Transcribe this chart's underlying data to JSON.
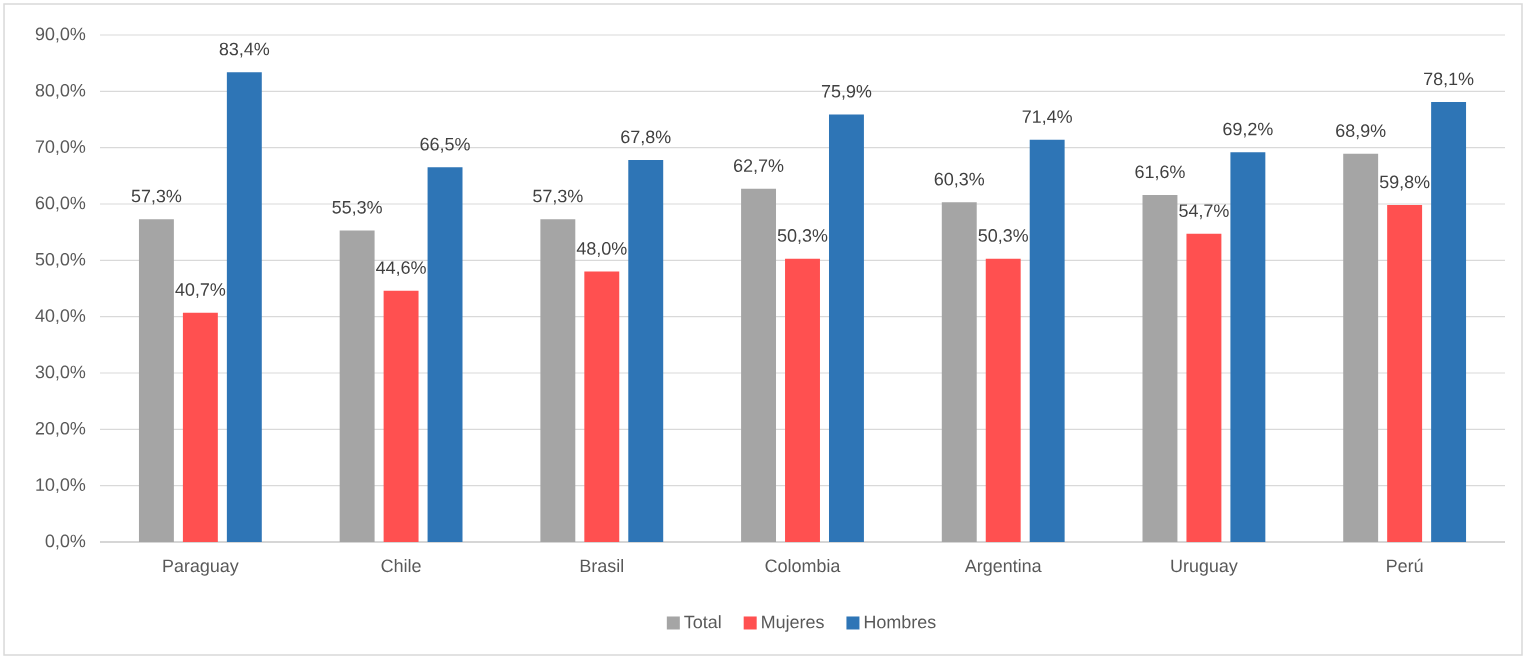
{
  "chart_data": {
    "type": "bar",
    "categories": [
      "Paraguay",
      "Chile",
      "Brasil",
      "Colombia",
      "Argentina",
      "Uruguay",
      "Perú"
    ],
    "series": [
      {
        "name": "Total",
        "color": "#a5a5a5",
        "values": [
          57.3,
          55.3,
          57.3,
          62.7,
          60.3,
          61.6,
          68.9
        ],
        "value_labels": [
          "57,3%",
          "55,3%",
          "57,3%",
          "62,7%",
          "60,3%",
          "61,6%",
          "68,9%"
        ]
      },
      {
        "name": "Mujeres",
        "color": "#ff5050",
        "values": [
          40.7,
          44.6,
          48.0,
          50.3,
          50.3,
          54.7,
          59.8
        ],
        "value_labels": [
          "40,7%",
          "44,6%",
          "48,0%",
          "50,3%",
          "50,3%",
          "54,7%",
          "59,8%"
        ]
      },
      {
        "name": "Hombres",
        "color": "#2e75b6",
        "values": [
          83.4,
          66.5,
          67.8,
          75.9,
          71.4,
          69.2,
          78.1
        ],
        "value_labels": [
          "83,4%",
          "66,5%",
          "67,8%",
          "75,9%",
          "71,4%",
          "69,2%",
          "78,1%"
        ]
      }
    ],
    "ylim": [
      0,
      90
    ],
    "yticks": [
      {
        "value": 0,
        "label": "0,0%"
      },
      {
        "value": 10,
        "label": "10,0%"
      },
      {
        "value": 20,
        "label": "20,0%"
      },
      {
        "value": 30,
        "label": "30,0%"
      },
      {
        "value": 40,
        "label": "40,0%"
      },
      {
        "value": 50,
        "label": "50,0%"
      },
      {
        "value": 60,
        "label": "60,0%"
      },
      {
        "value": 70,
        "label": "70,0%"
      },
      {
        "value": 80,
        "label": "80,0%"
      },
      {
        "value": 90,
        "label": "90,0%"
      }
    ],
    "grid": "y",
    "legend": "bottom"
  }
}
